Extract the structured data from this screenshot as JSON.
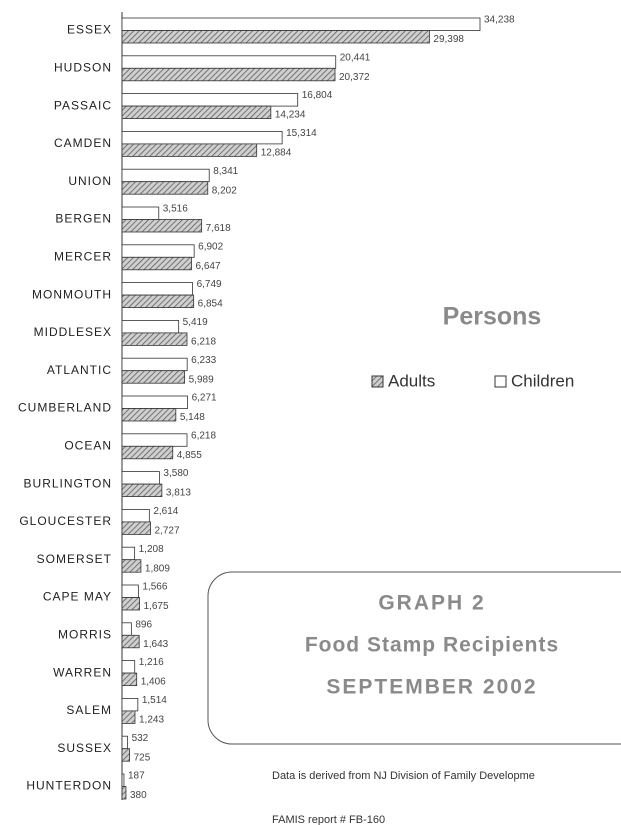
{
  "chart_data": {
    "type": "hbar",
    "title": "Persons",
    "categories": [
      "ESSEX",
      "HUDSON",
      "PASSAIC",
      "CAMDEN",
      "UNION",
      "BERGEN",
      "MERCER",
      "MONMOUTH",
      "MIDDLESEX",
      "ATLANTIC",
      "CUMBERLAND",
      "OCEAN",
      "BURLINGTON",
      "GLOUCESTER",
      "SOMERSET",
      "CAPE MAY",
      "MORRIS",
      "WARREN",
      "SALEM",
      "SUSSEX",
      "HUNTERDON"
    ],
    "series": [
      {
        "name": "Children",
        "color": "#ffffff",
        "pattern": "solid",
        "values": [
          34238,
          20441,
          16804,
          15314,
          8341,
          3516,
          6902,
          6749,
          5419,
          6233,
          6271,
          6218,
          3580,
          2614,
          1208,
          1566,
          896,
          1216,
          1514,
          532,
          187
        ],
        "value_labels": [
          "34,238",
          "20,441",
          "16,804",
          "15,314",
          "8,341",
          "3,516",
          "6,902",
          "6,749",
          "5,419",
          "6,233",
          "6,271",
          "6,218",
          "3,580",
          "2,614",
          "1,208",
          "1,566",
          "896",
          "1,216",
          "1,514",
          "532",
          "187"
        ]
      },
      {
        "name": "Adults",
        "color": "#9a9a9a",
        "pattern": "hatch",
        "values": [
          29398,
          20372,
          14234,
          12884,
          8202,
          7618,
          6647,
          6854,
          6218,
          5989,
          5148,
          4855,
          3813,
          2727,
          1809,
          1675,
          1643,
          1406,
          1243,
          725,
          380
        ],
        "value_labels": [
          "29,398",
          "20,372",
          "14,234",
          "12,884",
          "8,202",
          "7,618",
          "6,647",
          "6,854",
          "6,218",
          "5,989",
          "5,148",
          "4,855",
          "3,813",
          "2,727",
          "1,809",
          "1,675",
          "1,643",
          "1,406",
          "1,243",
          "725",
          "380"
        ]
      }
    ],
    "box_lines": [
      "GRAPH 2",
      "Food Stamp Recipients",
      "SEPTEMBER 2002"
    ],
    "notes": [
      "Data is derived from NJ Division of Family Developme",
      "FAMIS report # FB-160"
    ]
  }
}
